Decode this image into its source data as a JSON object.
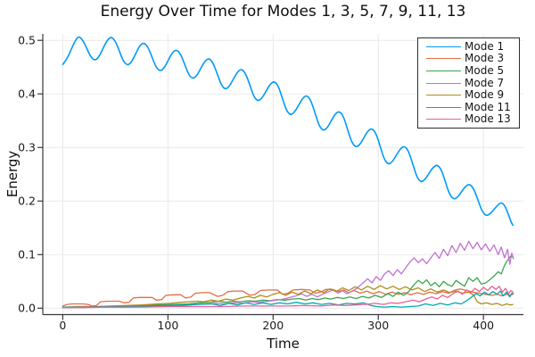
{
  "title": "Energy Over Time for Modes 1, 3, 5, 7, 9, 11, 13",
  "chart_data": {
    "type": "line",
    "title": "Energy Over Time for Modes 1, 3, 5, 7, 9, 11, 13",
    "xlabel": "Time",
    "ylabel": "Energy",
    "xlim": [
      -19,
      438
    ],
    "ylim": [
      -0.012,
      0.512
    ],
    "xticks": [
      0,
      100,
      200,
      300,
      400
    ],
    "xtick_labels": [
      "0",
      "100",
      "200",
      "300",
      "400"
    ],
    "yticks": [
      0.0,
      0.1,
      0.2,
      0.3,
      0.4,
      0.5
    ],
    "ytick_labels": [
      "0.0",
      "0.1",
      "0.2",
      "0.3",
      "0.4",
      "0.5"
    ],
    "grid": true,
    "grid_color": "#e9e9e9",
    "axis_color": "#36383c",
    "legend_position": "top-right",
    "legend": [
      "Mode 1",
      "Mode 3",
      "Mode 5",
      "Mode 7",
      "Mode 9",
      "Mode 11",
      "Mode 13"
    ],
    "series": [
      {
        "name": "Mode 1",
        "color": "#009AFA",
        "x": [
          0,
          4,
          8,
          12,
          15,
          18.9,
          22.8,
          26.6,
          30.5,
          34.4,
          38.3,
          42.1,
          46,
          49.9,
          53.8,
          57.6,
          61.5,
          65.4,
          69.3,
          73.1,
          77,
          80.9,
          84.8,
          88.6,
          92.5,
          96.4,
          100.3,
          104.1,
          108,
          111.9,
          115.8,
          119.6,
          123.5,
          127.4,
          131.3,
          135.1,
          139,
          142.9,
          146.8,
          150.6,
          154.5,
          158.4,
          162.3,
          166.1,
          170,
          173.9,
          177.8,
          181.6,
          185.5,
          189.4,
          193.3,
          197.1,
          201,
          204.9,
          208.8,
          212.6,
          216.5,
          220.4,
          224.3,
          228.1,
          232,
          235.9,
          239.8,
          243.6,
          247.5,
          251.4,
          255.3,
          259.1,
          263,
          266.9,
          270.8,
          274.6,
          278.5,
          282.4,
          286.3,
          290.1,
          294,
          297.9,
          301.8,
          305.6,
          309.5,
          313.4,
          317.3,
          321.1,
          325,
          328.9,
          332.8,
          336.6,
          340.5,
          344.4,
          348.3,
          352.1,
          356,
          359.9,
          363.8,
          367.6,
          371.5,
          375.4,
          379.3,
          383.1,
          387,
          390.9,
          394.8,
          398.6,
          402.5,
          406.4,
          410.3,
          414.1,
          418,
          422,
          426,
          428
        ],
        "y": [
          0.455,
          0.465,
          0.483,
          0.5,
          0.508,
          0.501,
          0.485,
          0.469,
          0.462,
          0.469,
          0.485,
          0.5,
          0.507,
          0.499,
          0.48,
          0.461,
          0.453,
          0.459,
          0.475,
          0.49,
          0.496,
          0.488,
          0.469,
          0.45,
          0.442,
          0.448,
          0.463,
          0.477,
          0.483,
          0.475,
          0.456,
          0.436,
          0.428,
          0.434,
          0.448,
          0.461,
          0.467,
          0.458,
          0.438,
          0.417,
          0.408,
          0.414,
          0.428,
          0.441,
          0.447,
          0.438,
          0.417,
          0.395,
          0.386,
          0.392,
          0.405,
          0.418,
          0.424,
          0.415,
          0.392,
          0.369,
          0.36,
          0.366,
          0.379,
          0.392,
          0.398,
          0.388,
          0.365,
          0.341,
          0.331,
          0.336,
          0.35,
          0.363,
          0.368,
          0.358,
          0.334,
          0.31,
          0.3,
          0.305,
          0.318,
          0.331,
          0.336,
          0.326,
          0.302,
          0.278,
          0.268,
          0.273,
          0.286,
          0.298,
          0.303,
          0.293,
          0.269,
          0.245,
          0.235,
          0.24,
          0.252,
          0.263,
          0.268,
          0.259,
          0.236,
          0.213,
          0.203,
          0.207,
          0.218,
          0.228,
          0.232,
          0.223,
          0.202,
          0.181,
          0.172,
          0.176,
          0.185,
          0.194,
          0.198,
          0.185,
          0.162,
          0.155
        ]
      },
      {
        "name": "Mode 3",
        "color": "#E26E47",
        "x": [
          0,
          4,
          9,
          14,
          19,
          24,
          28,
          32,
          36,
          42,
          48,
          54,
          58,
          63,
          67,
          73,
          79,
          85,
          89,
          94,
          98,
          105,
          112,
          117,
          122,
          126,
          133,
          140,
          147,
          152,
          157,
          164,
          171,
          178,
          183,
          188,
          196,
          204,
          209,
          214,
          219,
          227,
          235,
          240,
          245,
          250,
          257,
          262,
          267,
          272,
          277,
          283,
          289,
          295,
          301,
          307,
          313,
          319,
          325,
          331,
          337,
          343,
          349,
          355,
          361,
          367,
          373,
          378,
          384,
          390,
          396,
          402,
          408,
          413,
          418,
          422,
          425,
          428
        ],
        "y": [
          0.004,
          0.007,
          0.008,
          0.008,
          0.008,
          0.007,
          0.004,
          0.005,
          0.012,
          0.013,
          0.013,
          0.013,
          0.01,
          0.011,
          0.019,
          0.02,
          0.02,
          0.02,
          0.015,
          0.016,
          0.024,
          0.025,
          0.025,
          0.019,
          0.021,
          0.028,
          0.029,
          0.029,
          0.022,
          0.024,
          0.031,
          0.032,
          0.032,
          0.024,
          0.026,
          0.033,
          0.034,
          0.034,
          0.026,
          0.028,
          0.034,
          0.035,
          0.034,
          0.028,
          0.03,
          0.035,
          0.035,
          0.031,
          0.034,
          0.029,
          0.033,
          0.028,
          0.032,
          0.027,
          0.031,
          0.026,
          0.03,
          0.026,
          0.029,
          0.025,
          0.029,
          0.026,
          0.03,
          0.027,
          0.031,
          0.028,
          0.034,
          0.036,
          0.033,
          0.03,
          0.028,
          0.026,
          0.024,
          0.026,
          0.023,
          0.026,
          0.024,
          0.026
        ]
      },
      {
        "name": "Mode 5",
        "color": "#3DA44E",
        "x": [
          0,
          15,
          30,
          45,
          60,
          75,
          90,
          105,
          120,
          130,
          140,
          148,
          155,
          162,
          169,
          176,
          183,
          190,
          197,
          204,
          211,
          218,
          225,
          231,
          237,
          243,
          249,
          255,
          261,
          267,
          273,
          279,
          285,
          291,
          297,
          303,
          309,
          314,
          319,
          324,
          329,
          334,
          338,
          342,
          346,
          350,
          354,
          358,
          362,
          366,
          370,
          374,
          378,
          382,
          386,
          390,
          394,
          398,
          402,
          406,
          410,
          414,
          417,
          420,
          423,
          426,
          428
        ],
        "y": [
          0.001,
          0.002,
          0.002,
          0.003,
          0.004,
          0.005,
          0.006,
          0.007,
          0.008,
          0.01,
          0.011,
          0.013,
          0.011,
          0.013,
          0.012,
          0.014,
          0.013,
          0.015,
          0.014,
          0.016,
          0.015,
          0.017,
          0.018,
          0.015,
          0.018,
          0.016,
          0.019,
          0.017,
          0.02,
          0.018,
          0.021,
          0.018,
          0.022,
          0.019,
          0.024,
          0.02,
          0.027,
          0.022,
          0.03,
          0.024,
          0.031,
          0.044,
          0.052,
          0.046,
          0.053,
          0.042,
          0.048,
          0.04,
          0.05,
          0.044,
          0.041,
          0.052,
          0.046,
          0.041,
          0.057,
          0.05,
          0.057,
          0.045,
          0.047,
          0.053,
          0.06,
          0.068,
          0.064,
          0.08,
          0.09,
          0.097,
          0.096
        ]
      },
      {
        "name": "Mode 7",
        "color": "#C271D2",
        "x": [
          0,
          20,
          40,
          60,
          80,
          100,
          115,
          127,
          137,
          147,
          155,
          163,
          171,
          179,
          187,
          195,
          203,
          210,
          216,
          222,
          227,
          232,
          237,
          242,
          247,
          252,
          257,
          262,
          266,
          270,
          274,
          278,
          282,
          286,
          290,
          294,
          298,
          302,
          306,
          310,
          314,
          318,
          322,
          326,
          330,
          334,
          338,
          342,
          346,
          350,
          354,
          358,
          362,
          366,
          370,
          374,
          378,
          382,
          386,
          390,
          394,
          398,
          402,
          406,
          410,
          414,
          417,
          420,
          423,
          425,
          427,
          428.5
        ],
        "y": [
          0.001,
          0.001,
          0.002,
          0.002,
          0.003,
          0.004,
          0.005,
          0.007,
          0.008,
          0.009,
          0.008,
          0.01,
          0.009,
          0.012,
          0.011,
          0.013,
          0.015,
          0.017,
          0.02,
          0.023,
          0.027,
          0.022,
          0.026,
          0.021,
          0.026,
          0.03,
          0.034,
          0.028,
          0.033,
          0.027,
          0.031,
          0.035,
          0.041,
          0.048,
          0.055,
          0.047,
          0.059,
          0.052,
          0.064,
          0.07,
          0.061,
          0.072,
          0.064,
          0.075,
          0.086,
          0.094,
          0.085,
          0.092,
          0.083,
          0.094,
          0.104,
          0.093,
          0.11,
          0.098,
          0.117,
          0.104,
          0.121,
          0.108,
          0.125,
          0.111,
          0.123,
          0.109,
          0.12,
          0.106,
          0.118,
          0.1,
          0.114,
          0.094,
          0.11,
          0.082,
          0.103,
          0.092
        ]
      },
      {
        "name": "Mode 9",
        "color": "#AC8E18",
        "x": [
          0,
          15,
          30,
          45,
          60,
          75,
          90,
          102,
          112,
          120,
          128,
          134,
          141,
          148,
          155,
          162,
          169,
          176,
          182,
          188,
          194,
          200,
          206,
          212,
          218,
          224,
          230,
          236,
          242,
          248,
          254,
          260,
          266,
          272,
          278,
          284,
          290,
          296,
          302,
          308,
          314,
          320,
          326,
          332,
          338,
          344,
          350,
          356,
          362,
          368,
          374,
          380,
          386,
          391,
          394,
          398,
          403,
          408,
          413,
          418,
          422,
          426,
          428
        ],
        "y": [
          0.002,
          0.003,
          0.003,
          0.004,
          0.005,
          0.006,
          0.008,
          0.009,
          0.011,
          0.012,
          0.013,
          0.012,
          0.015,
          0.013,
          0.017,
          0.015,
          0.019,
          0.022,
          0.019,
          0.024,
          0.021,
          0.026,
          0.029,
          0.024,
          0.03,
          0.026,
          0.032,
          0.027,
          0.034,
          0.029,
          0.036,
          0.031,
          0.038,
          0.033,
          0.04,
          0.034,
          0.041,
          0.035,
          0.042,
          0.036,
          0.041,
          0.035,
          0.04,
          0.034,
          0.038,
          0.031,
          0.036,
          0.03,
          0.034,
          0.029,
          0.032,
          0.028,
          0.03,
          0.024,
          0.012,
          0.008,
          0.01,
          0.007,
          0.009,
          0.005,
          0.008,
          0.006,
          0.007
        ]
      },
      {
        "name": "Mode 11",
        "color": "#00AAAE",
        "x": [
          0,
          20,
          40,
          60,
          80,
          100,
          115,
          130,
          142,
          150,
          158,
          166,
          174,
          182,
          190,
          198,
          206,
          214,
          222,
          230,
          238,
          246,
          254,
          262,
          270,
          278,
          286,
          293,
          299,
          306,
          314,
          322,
          330,
          338,
          345,
          352,
          359,
          366,
          373,
          379,
          384,
          389,
          393,
          397,
          401,
          405,
          409,
          413,
          416,
          419,
          422,
          425,
          427,
          428.5
        ],
        "y": [
          0.002,
          0.002,
          0.003,
          0.003,
          0.004,
          0.005,
          0.006,
          0.007,
          0.008,
          0.005,
          0.009,
          0.006,
          0.01,
          0.007,
          0.01,
          0.007,
          0.01,
          0.008,
          0.011,
          0.008,
          0.01,
          0.007,
          0.009,
          0.006,
          0.009,
          0.008,
          0.01,
          0.005,
          0.003,
          0.002,
          0.003,
          0.002,
          0.003,
          0.004,
          0.008,
          0.005,
          0.009,
          0.006,
          0.01,
          0.008,
          0.014,
          0.021,
          0.027,
          0.023,
          0.03,
          0.025,
          0.031,
          0.026,
          0.032,
          0.023,
          0.03,
          0.021,
          0.028,
          0.027
        ]
      },
      {
        "name": "Mode 13",
        "color": "#ED5F92",
        "x": [
          0,
          25,
          50,
          75,
          100,
          125,
          150,
          175,
          200,
          215,
          230,
          245,
          258,
          268,
          278,
          288,
          297,
          305,
          312,
          319,
          326,
          333,
          339,
          345,
          351,
          356,
          361,
          366,
          371,
          376,
          380,
          384,
          388,
          392,
          396,
          400,
          404,
          408,
          412,
          415,
          418,
          421,
          424,
          426,
          428
        ],
        "y": [
          0.001,
          0.002,
          0.002,
          0.002,
          0.003,
          0.003,
          0.003,
          0.004,
          0.004,
          0.004,
          0.005,
          0.004,
          0.006,
          0.005,
          0.006,
          0.007,
          0.009,
          0.007,
          0.01,
          0.009,
          0.012,
          0.015,
          0.012,
          0.017,
          0.021,
          0.017,
          0.024,
          0.02,
          0.027,
          0.032,
          0.026,
          0.034,
          0.029,
          0.037,
          0.031,
          0.039,
          0.033,
          0.041,
          0.035,
          0.041,
          0.03,
          0.037,
          0.027,
          0.033,
          0.03
        ]
      }
    ]
  }
}
